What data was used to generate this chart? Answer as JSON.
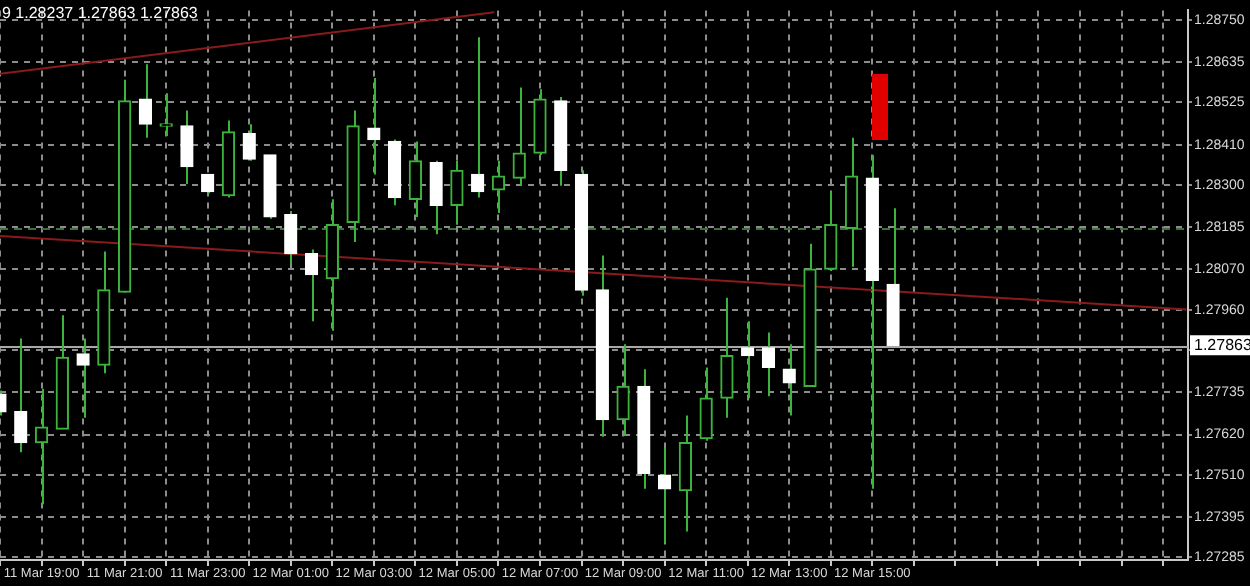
{
  "chart_data": {
    "type": "candlestick",
    "annotations": [
      "9 1.28237 1.27863 1.27863"
    ],
    "xlim": [
      "--03-11T18:00",
      "--03-12T22:36"
    ],
    "xticks": [
      {
        "value": "--03-11T18:00",
        "label": null
      },
      {
        "value": "--03-11T19:00",
        "label": "11 Mar 19:00"
      },
      {
        "value": "--03-11T20:00",
        "label": null
      },
      {
        "value": "--03-11T21:00",
        "label": "11 Mar 21:00"
      },
      {
        "value": "--03-11T22:00",
        "label": null
      },
      {
        "value": "--03-11T23:00",
        "label": "11 Mar 23:00"
      },
      {
        "value": "--03-12T00:00",
        "label": null
      },
      {
        "value": "--03-12T01:00",
        "label": "12 Mar 01:00"
      },
      {
        "value": "--03-12T02:00",
        "label": null
      },
      {
        "value": "--03-12T03:00",
        "label": "12 Mar 03:00"
      },
      {
        "value": "--03-12T04:00",
        "label": null
      },
      {
        "value": "--03-12T05:00",
        "label": "12 Mar 05:00"
      },
      {
        "value": "--03-12T06:00",
        "label": null
      },
      {
        "value": "--03-12T07:00",
        "label": "12 Mar 07:00"
      },
      {
        "value": "--03-12T08:00",
        "label": null
      },
      {
        "value": "--03-12T09:00",
        "label": "12 Mar 09:00"
      },
      {
        "value": "--03-12T10:00",
        "label": null
      },
      {
        "value": "--03-12T11:00",
        "label": "12 Mar 11:00"
      },
      {
        "value": "--03-12T12:00",
        "label": null
      },
      {
        "value": "--03-12T13:00",
        "label": "12 Mar 13:00"
      },
      {
        "value": "--03-12T14:00",
        "label": null
      },
      {
        "value": "--03-12T15:00",
        "label": "12 Mar 15:00"
      },
      {
        "value": "--03-12T16:00",
        "label": null
      },
      {
        "value": "--03-12T17:00",
        "label": null
      },
      {
        "value": "--03-12T18:00",
        "label": null
      },
      {
        "value": "--03-12T19:00",
        "label": null
      },
      {
        "value": "--03-12T20:00",
        "label": null
      },
      {
        "value": "--03-12T21:00",
        "label": null
      },
      {
        "value": "--03-12T22:00",
        "label": null
      }
    ],
    "ylim": [
      1.27278,
      1.28776
    ],
    "yticks": [
      {
        "value": 1.2875,
        "label": "1.28750"
      },
      {
        "value": 1.28635,
        "label": "1.28635"
      },
      {
        "value": 1.28525,
        "label": "1.28525"
      },
      {
        "value": 1.2841,
        "label": "1.28410"
      },
      {
        "value": 1.283,
        "label": "1.28300"
      },
      {
        "value": 1.28185,
        "label": "1.28185"
      },
      {
        "value": 1.2807,
        "label": "1.28070"
      },
      {
        "value": 1.2796,
        "label": "1.27960"
      },
      {
        "value": 1.2785,
        "label": null
      },
      {
        "value": 1.27735,
        "label": "1.27735"
      },
      {
        "value": 1.2762,
        "label": "1.27620"
      },
      {
        "value": 1.2751,
        "label": "1.27510"
      },
      {
        "value": 1.27395,
        "label": "1.27395"
      },
      {
        "value": 1.27285,
        "label": "1.27285"
      }
    ],
    "grid": true,
    "ref_lines": [
      {
        "axis": "y",
        "value": 1.27863,
        "label": "1.27863",
        "color": "#a8a8a8",
        "line_style": "solid"
      },
      {
        "axis": "y",
        "value": 1.28185,
        "color": "#3d6e3d",
        "line_style": "dashed"
      }
    ],
    "series": [
      {
        "color": "#3cb43c",
        "x": [
          "--03-11T18:00",
          "--03-11T18:30",
          "--03-11T19:00",
          "--03-11T19:30",
          "--03-11T20:00",
          "--03-11T20:30",
          "--03-11T21:00",
          "--03-11T21:30",
          "--03-11T22:00",
          "--03-11T22:30",
          "--03-11T23:00",
          "--03-11T23:30",
          "--03-12T00:00",
          "--03-12T00:30",
          "--03-12T01:00",
          "--03-12T01:30",
          "--03-12T02:00",
          "--03-12T02:30",
          "--03-12T03:00",
          "--03-12T03:30",
          "--03-12T04:00",
          "--03-12T04:30",
          "--03-12T05:00",
          "--03-12T05:30",
          "--03-12T06:00",
          "--03-12T06:30",
          "--03-12T07:00",
          "--03-12T07:30",
          "--03-12T08:00",
          "--03-12T08:30",
          "--03-12T09:00",
          "--03-12T09:30",
          "--03-12T10:00",
          "--03-12T10:30",
          "--03-12T11:00",
          "--03-12T11:30",
          "--03-12T12:00",
          "--03-12T12:30",
          "--03-12T13:00",
          "--03-12T13:30",
          "--03-12T14:00",
          "--03-12T14:30",
          "--03-12T15:00",
          "--03-12T15:30"
        ],
        "ohlc": [
          [
            1.2773,
            1.2774,
            1.27672,
            1.27682
          ],
          [
            1.27682,
            1.27882,
            1.27572,
            1.27598
          ],
          [
            1.27598,
            1.27745,
            1.2743,
            1.2764
          ],
          [
            1.27635,
            1.27945,
            1.27635,
            1.2783
          ],
          [
            1.2784,
            1.27882,
            1.27666,
            1.27809
          ],
          [
            1.27809,
            1.28119,
            1.27787,
            1.28014
          ],
          [
            1.28008,
            1.28587,
            1.28008,
            1.28529
          ],
          [
            1.28534,
            1.28629,
            1.28429,
            1.28466
          ],
          [
            1.28461,
            1.2855,
            1.28434,
            1.28461
          ],
          [
            1.28461,
            1.28503,
            1.28303,
            1.2835
          ],
          [
            1.28329,
            1.28329,
            1.28277,
            1.28282
          ],
          [
            1.28271,
            1.28476,
            1.28266,
            1.28445
          ],
          [
            1.2844,
            1.28466,
            1.28366,
            1.28371
          ],
          [
            1.28382,
            1.28382,
            1.28208,
            1.28213
          ],
          [
            1.28219,
            1.28229,
            1.28087,
            1.28113
          ],
          [
            1.28113,
            1.28124,
            1.27929,
            1.28056
          ],
          [
            1.28045,
            1.28261,
            1.27903,
            1.28192
          ],
          [
            1.28198,
            1.28503,
            1.28145,
            1.28461
          ],
          [
            1.28455,
            1.28592,
            1.28329,
            1.28424
          ],
          [
            1.28419,
            1.28424,
            1.28245,
            1.28266
          ],
          [
            1.28261,
            1.28419,
            1.28213,
            1.28366
          ],
          [
            1.28361,
            1.28366,
            1.28166,
            1.28245
          ],
          [
            1.28245,
            1.28366,
            1.28192,
            1.2834
          ],
          [
            1.28329,
            1.28703,
            1.28266,
            1.28282
          ],
          [
            1.28287,
            1.28366,
            1.28224,
            1.28324
          ],
          [
            1.28319,
            1.28566,
            1.28298,
            1.28387
          ],
          [
            1.28387,
            1.28561,
            1.28382,
            1.28534
          ],
          [
            1.28529,
            1.2854,
            1.28298,
            1.2834
          ],
          [
            1.28329,
            1.2834,
            1.27998,
            1.28014
          ],
          [
            1.28014,
            1.28108,
            1.27614,
            1.27661
          ],
          [
            1.27661,
            1.27866,
            1.27619,
            1.27751
          ],
          [
            1.27751,
            1.27798,
            1.27472,
            1.27514
          ],
          [
            1.27509,
            1.27583,
            1.27325,
            1.27472
          ],
          [
            1.27467,
            1.27672,
            1.27356,
            1.27598
          ],
          [
            1.27609,
            1.27803,
            1.27603,
            1.27719
          ],
          [
            1.27719,
            1.27993,
            1.27666,
            1.27835
          ],
          [
            1.27856,
            1.27929,
            1.27719,
            1.27835
          ],
          [
            1.27856,
            1.27898,
            1.27724,
            1.27803
          ],
          [
            1.27798,
            1.27866,
            1.27672,
            1.27761
          ],
          [
            1.27751,
            1.2814,
            1.27751,
            1.28071
          ],
          [
            1.28071,
            1.28282,
            1.28066,
            1.28192
          ],
          [
            1.28182,
            1.28429,
            1.28077,
            1.28324
          ],
          [
            1.28319,
            1.28382,
            1.27472,
            1.2804
          ],
          [
            1.28029,
            1.28237,
            1.27863,
            1.27863
          ]
        ],
        "colors": [
          "#ffffff",
          "#ffffff",
          "#3cb43c",
          "#3cb43c",
          "#ffffff",
          "#3cb43c",
          "#3cb43c",
          "#ffffff",
          "#3cb43c",
          "#ffffff",
          "#ffffff",
          "#3cb43c",
          "#ffffff",
          "#ffffff",
          "#ffffff",
          "#ffffff",
          "#3cb43c",
          "#3cb43c",
          "#ffffff",
          "#ffffff",
          "#3cb43c",
          "#ffffff",
          "#3cb43c",
          "#ffffff",
          "#3cb43c",
          "#3cb43c",
          "#3cb43c",
          "#ffffff",
          "#ffffff",
          "#ffffff",
          "#3cb43c",
          "#ffffff",
          "#ffffff",
          "#3cb43c",
          "#3cb43c",
          "#3cb43c",
          "#ffffff",
          "#ffffff",
          "#ffffff",
          "#3cb43c",
          "#3cb43c",
          "#3cb43c",
          "#ffffff",
          "#ffffff"
        ],
        "type": "candlestick"
      },
      {
        "type": "line",
        "color": "#8b1a1a",
        "x": [
          "--03-11T18:00",
          "--03-12T05:54"
        ],
        "values": [
          1.28603,
          1.28771
        ]
      },
      {
        "type": "line",
        "color": "#8b1a1a",
        "x": [
          "--03-11T18:00",
          "--03-12T22:34"
        ],
        "values": [
          1.28161,
          1.27961
        ]
      }
    ]
  }
}
